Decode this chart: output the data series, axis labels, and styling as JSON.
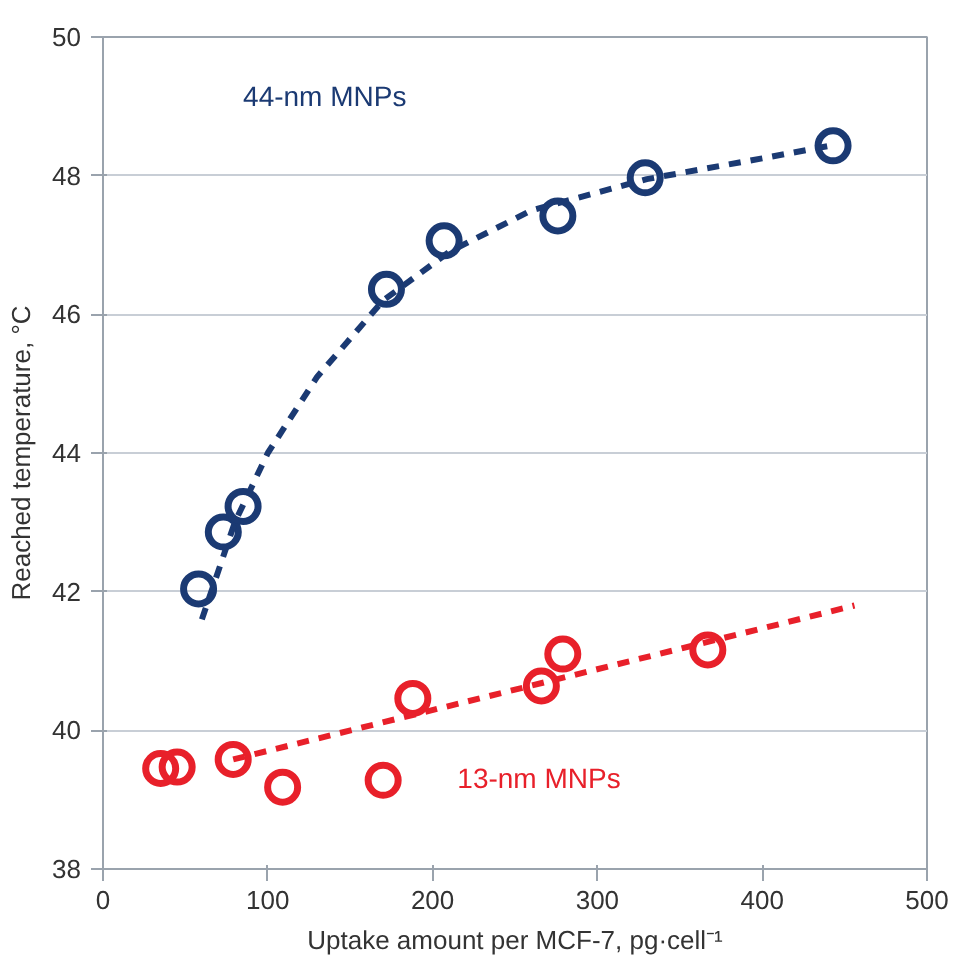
{
  "chart_data": {
    "type": "scatter",
    "xlabel": "Uptake amount per MCF-7, pg·cell⁻¹",
    "ylabel": "Reached temperature, °C",
    "xlim": [
      0,
      500
    ],
    "xticks": [
      0,
      100,
      200,
      300,
      400,
      500
    ],
    "ylim": [
      38,
      50
    ],
    "yticks": [
      38,
      40,
      42,
      44,
      46,
      48,
      50
    ],
    "grid": "y",
    "marker": "circle",
    "series": [
      {
        "name": "44-nm MNPs",
        "color": "#1b3a73",
        "x": [
          58,
          73,
          85,
          172,
          207,
          276,
          329,
          443
        ],
        "values": [
          42.04,
          42.86,
          43.23,
          46.36,
          47.06,
          47.42,
          47.97,
          48.43
        ]
      },
      {
        "name": "13-nm MNPs",
        "color": "#e8202a",
        "x": [
          35,
          45,
          79,
          109,
          170,
          188,
          266,
          279,
          367
        ],
        "values": [
          39.45,
          39.47,
          39.58,
          39.18,
          39.28,
          40.46,
          40.64,
          41.1,
          41.16
        ]
      },
      {
        "type": "line",
        "marker": "none",
        "line_style": "dashed",
        "color": "#1b3a73",
        "x": [
          60,
          80,
          100,
          130,
          170,
          210,
          260,
          330,
          400,
          445
        ],
        "values": [
          41.6,
          43.0,
          44.0,
          45.1,
          46.2,
          46.9,
          47.5,
          47.95,
          48.25,
          48.45
        ]
      },
      {
        "type": "line",
        "marker": "none",
        "line_style": "dashed",
        "color": "#e8202a",
        "x": [
          79,
          456
        ],
        "values": [
          39.58,
          41.8
        ]
      }
    ]
  }
}
